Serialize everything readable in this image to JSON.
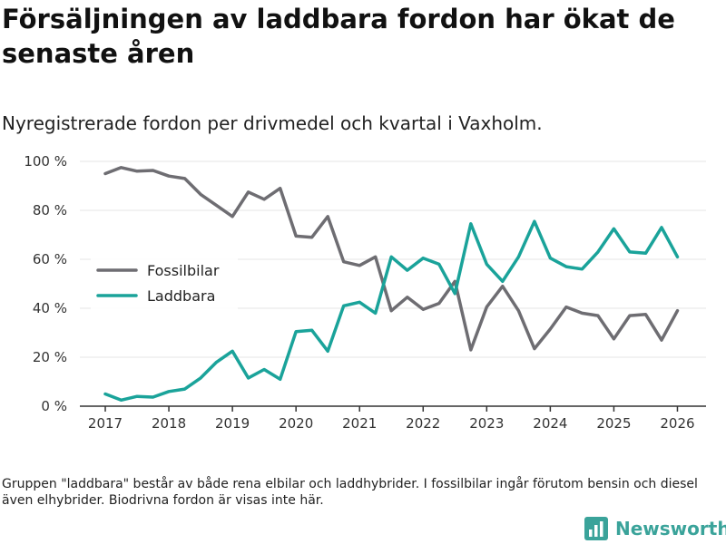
{
  "page": {
    "title": "Försäljningen av laddbara fordon har ökat de senaste åren",
    "subtitle": "Nyregistrerade fordon per drivmedel och kvartal i Vaxholm.",
    "note": "Gruppen \"laddbara\" består av både rena elbilar och laddhybrider. I fossilbilar ingår förutom bensin och diesel även elhybrider. Biodrivna fordon är visas inte här.",
    "brand": "Newsworthy"
  },
  "colors": {
    "fossil": "#6e6d72",
    "laddbara": "#1aa39a",
    "grid": "#e6e6e6",
    "axis": "#333333",
    "brand": "#3aa39a"
  },
  "chart_data": {
    "type": "line",
    "title": "Försäljningen av laddbara fordon har ökat de senaste åren",
    "subtitle": "Nyregistrerade fordon per drivmedel och kvartal i Vaxholm.",
    "xlabel": "",
    "ylabel": "",
    "x": [
      2017,
      2017.25,
      2017.5,
      2017.75,
      2018,
      2018.25,
      2018.5,
      2018.75,
      2019,
      2019.25,
      2019.5,
      2019.75,
      2020,
      2020.25,
      2020.5,
      2020.75,
      2021,
      2021.25,
      2021.5,
      2021.75,
      2022,
      2022.25,
      2022.5,
      2022.75,
      2023,
      2023.25,
      2023.5,
      2023.75,
      2024,
      2024.25,
      2024.5,
      2024.75,
      2025,
      2025.25,
      2025.5,
      2025.75,
      2026
    ],
    "xlim": [
      2016.6,
      2026.45
    ],
    "ylim": [
      0,
      100
    ],
    "x_ticks": [
      2017,
      2018,
      2019,
      2020,
      2021,
      2022,
      2023,
      2024,
      2025,
      2026
    ],
    "x_tick_labels": [
      "2017",
      "2018",
      "2019",
      "2020",
      "2021",
      "2022",
      "2023",
      "2024",
      "2025",
      "2026"
    ],
    "y_ticks": [
      0,
      20,
      40,
      60,
      80,
      100
    ],
    "y_tick_labels": [
      "0 %",
      "20 %",
      "40 %",
      "60 %",
      "80 %",
      "100 %"
    ],
    "grid": true,
    "legend_position": "middle-left",
    "series": [
      {
        "name": "Fossilbilar",
        "color": "#6e6d72",
        "values": [
          95,
          97.5,
          96,
          96.3,
          94,
          93,
          86.5,
          82,
          77.5,
          87.5,
          84.5,
          89,
          69.5,
          69,
          77.5,
          59,
          57.5,
          61,
          39,
          44.5,
          39.5,
          42,
          51,
          23,
          40.5,
          49,
          39,
          23.5,
          31.5,
          40.5,
          38,
          37,
          27.5,
          37,
          37.5,
          27,
          39
        ]
      },
      {
        "name": "Laddbara",
        "color": "#1aa39a",
        "values": [
          5,
          2.5,
          4,
          3.7,
          6,
          7,
          11.5,
          18,
          22.5,
          11.5,
          15,
          11,
          30.5,
          31,
          22.5,
          41,
          42.5,
          38,
          61,
          55.5,
          60.5,
          58,
          46,
          74.5,
          58,
          51,
          61,
          75.5,
          60.5,
          57,
          56,
          63,
          72.5,
          63,
          62.5,
          73,
          61
        ]
      }
    ]
  }
}
